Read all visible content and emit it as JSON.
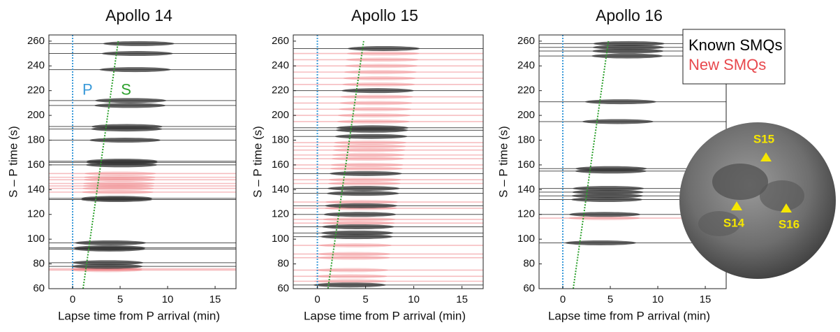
{
  "chart_data": [
    {
      "type": "record",
      "title": "Apollo 14",
      "x_label": "Lapse time from P arrival (min)",
      "y_label": "S – P time (s)",
      "xlim": [
        -2.5,
        17.2
      ],
      "ylim": [
        60,
        265
      ],
      "xticks": [
        0,
        5,
        10,
        15
      ],
      "yticks": [
        60,
        80,
        100,
        120,
        140,
        160,
        180,
        200,
        220,
        240,
        260
      ],
      "p_line": 0,
      "s_line": {
        "x": [
          1.1,
          4.8
        ],
        "y": [
          60,
          260
        ]
      },
      "p_color": "#3a9ad9",
      "s_color": "#2ca02c",
      "phase_labels": [
        "P",
        "S"
      ],
      "series": [
        {
          "color": "#333333",
          "values": [
            258,
            250,
            237,
            212,
            208,
            191,
            189,
            180,
            163,
            162,
            160,
            133,
            132,
            97,
            93,
            92,
            81,
            78
          ]
        },
        {
          "color": "#e8484d",
          "values": [
            153,
            150,
            148,
            145,
            143,
            141,
            138,
            76,
            75
          ]
        }
      ]
    },
    {
      "type": "record",
      "title": "Apollo 15",
      "x_label": "Lapse time from P arrival (min)",
      "y_label": "S – P time (s)",
      "xlim": [
        -2.5,
        17.2
      ],
      "ylim": [
        60,
        265
      ],
      "xticks": [
        0,
        5,
        10,
        15
      ],
      "yticks": [
        60,
        80,
        100,
        120,
        140,
        160,
        180,
        200,
        220,
        240,
        260
      ],
      "p_line": 0,
      "s_line": {
        "x": [
          1.1,
          4.8
        ],
        "y": [
          60,
          260
        ]
      },
      "p_color": "#3a9ad9",
      "s_color": "#2ca02c",
      "series": [
        {
          "color": "#333333",
          "values": [
            254,
            220,
            190,
            188,
            183,
            153,
            141,
            137,
            127,
            120,
            110,
            105,
            102,
            63
          ]
        },
        {
          "color": "#e8484d",
          "values": [
            250,
            245,
            240,
            235,
            230,
            225,
            215,
            210,
            205,
            200,
            195,
            178,
            175,
            172,
            168,
            165,
            160,
            157,
            148,
            145,
            130,
            125,
            116,
            113,
            95,
            88,
            85,
            75,
            70,
            66
          ]
        }
      ]
    },
    {
      "type": "record",
      "title": "Apollo 16",
      "x_label": "Lapse time from P arrival (min)",
      "y_label": "S – P time (s)",
      "xlim": [
        -2.5,
        17.2
      ],
      "ylim": [
        60,
        265
      ],
      "xticks": [
        0,
        5,
        10,
        15
      ],
      "yticks": [
        60,
        80,
        100,
        120,
        140,
        160,
        180,
        200,
        220,
        240,
        260
      ],
      "p_line": 0,
      "s_line": {
        "x": [
          1.1,
          4.8
        ],
        "y": [
          60,
          260
        ]
      },
      "p_color": "#3a9ad9",
      "s_color": "#2ca02c",
      "series": [
        {
          "name": "Known SMQs",
          "color": "#333333",
          "values": [
            258,
            255,
            252,
            248,
            211,
            195,
            157,
            155,
            141,
            138,
            135,
            132,
            120,
            97
          ]
        },
        {
          "name": "New SMQs",
          "color": "#e8484d",
          "values": [
            117
          ]
        }
      ]
    }
  ],
  "moon": {
    "stations": [
      "S15",
      "S14",
      "S16"
    ]
  }
}
